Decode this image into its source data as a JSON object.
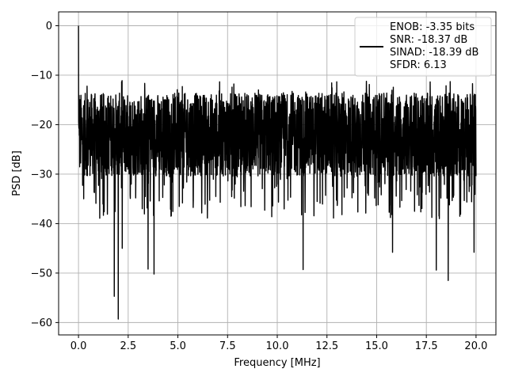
{
  "chart_data": {
    "type": "line",
    "xlabel": "Frequency [MHz]",
    "ylabel": "PSD [dB]",
    "xlim": [
      -1.0,
      21.0
    ],
    "ylim": [
      -62.5,
      2.8
    ],
    "xticks": [
      0.0,
      2.5,
      5.0,
      7.5,
      10.0,
      12.5,
      15.0,
      17.5,
      20.0
    ],
    "xtick_labels": [
      "0.0",
      "2.5",
      "5.0",
      "7.5",
      "10.0",
      "12.5",
      "15.0",
      "17.5",
      "20.0"
    ],
    "yticks": [
      0,
      -10,
      -20,
      -30,
      -40,
      -50,
      -60
    ],
    "ytick_labels": [
      "0",
      "−10",
      "−20",
      "−30",
      "−40",
      "−50",
      "−60"
    ],
    "grid": true,
    "legend": {
      "position": "upper-right",
      "entries": [
        "ENOB: -3.35 bits",
        "SNR: -18.37 dB",
        "SINAD: -18.39 dB",
        "SFDR: 6.13"
      ]
    },
    "series": [
      {
        "color": "#000000",
        "trace": {
          "x_start": 0.0,
          "x_end": 20.0,
          "peak": {
            "x": 0.0,
            "y": 0.0
          },
          "band_upper_typical": -14,
          "band_lower_typical": -30,
          "notable_minima": [
            {
              "x": 1.8,
              "y": -54.7
            },
            {
              "x": 2.0,
              "y": -59.3
            },
            {
              "x": 2.2,
              "y": -45.0
            },
            {
              "x": 3.5,
              "y": -49.2
            },
            {
              "x": 3.8,
              "y": -50.2
            },
            {
              "x": 11.3,
              "y": -49.3
            },
            {
              "x": 15.8,
              "y": -45.8
            },
            {
              "x": 18.0,
              "y": -49.4
            },
            {
              "x": 18.6,
              "y": -51.5
            },
            {
              "x": 19.9,
              "y": -45.8
            }
          ]
        }
      }
    ]
  }
}
